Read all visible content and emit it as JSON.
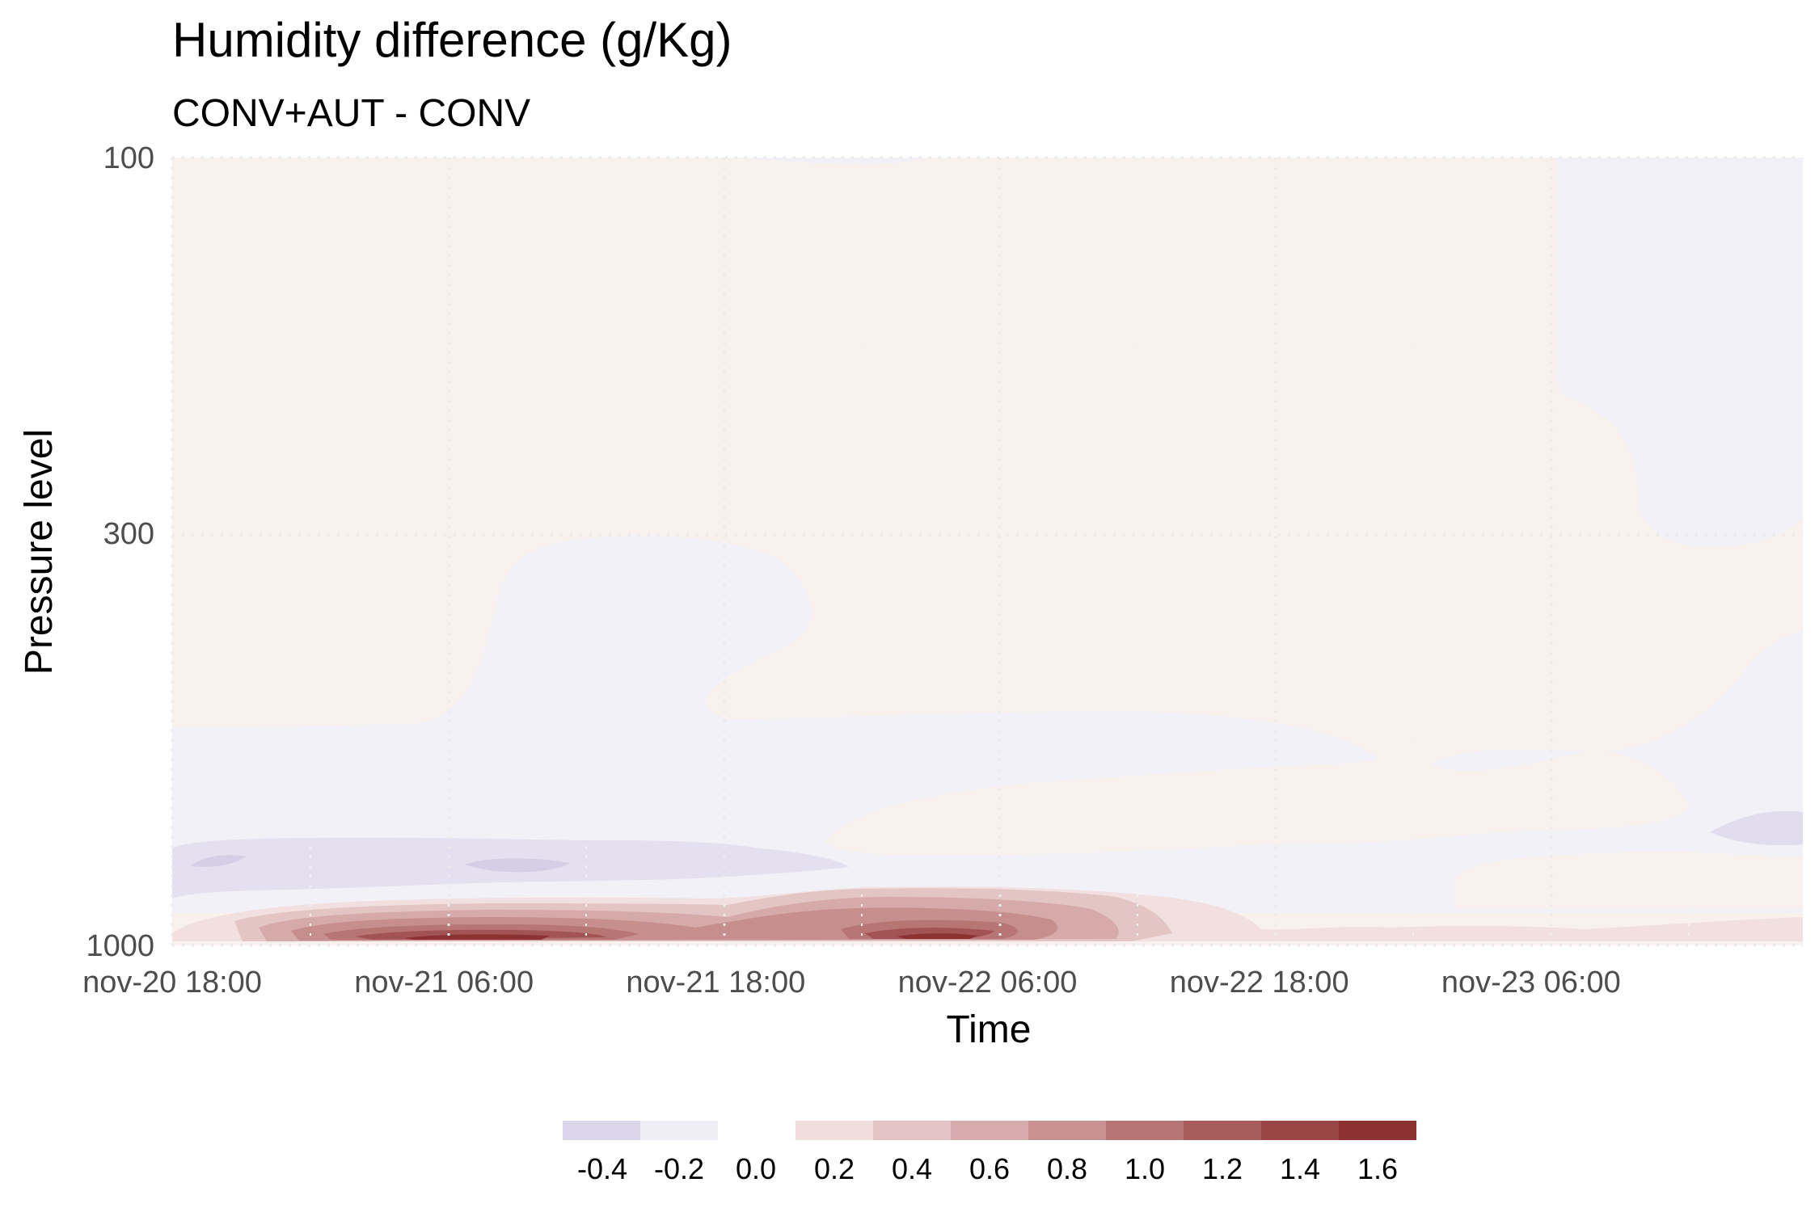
{
  "chart_data": {
    "type": "heatmap",
    "subtype": "filled-contour",
    "title": "Humidity difference (g/Kg)",
    "subtitle": "CONV+AUT - CONV",
    "xlabel": "Time",
    "ylabel": "Pressure level",
    "x_ticks": [
      "nov-20 18:00",
      "nov-21 06:00",
      "nov-21 18:00",
      "nov-22 06:00",
      "nov-22 18:00",
      "nov-23 06:00"
    ],
    "x_range": [
      "nov-20 18:00",
      "nov-23 18:00"
    ],
    "y_ticks": [
      "100",
      "300",
      "1000"
    ],
    "y_range": [
      1000,
      100
    ],
    "y_scale": "log, reversed",
    "grid": true,
    "legend_position": "bottom",
    "legend": {
      "labels": [
        "-0.4",
        "-0.2",
        "0.0",
        "0.2",
        "0.4",
        "0.6",
        "0.8",
        "1.0",
        "1.2",
        "1.4",
        "1.6"
      ],
      "bins": [
        {
          "from": -0.4,
          "to": -0.2,
          "color": "#dcd6ea"
        },
        {
          "from": -0.2,
          "to": 0.0,
          "color": "#efedf5"
        },
        {
          "from": 0.0,
          "to": 0.2,
          "color": "#f0dede"
        },
        {
          "from": 0.2,
          "to": 0.4,
          "color": "#e4c4c4"
        },
        {
          "from": 0.4,
          "to": 0.6,
          "color": "#d8acac"
        },
        {
          "from": 0.6,
          "to": 0.8,
          "color": "#c99191"
        },
        {
          "from": 0.8,
          "to": 1.0,
          "color": "#b87575"
        },
        {
          "from": 1.0,
          "to": 1.2,
          "color": "#a95c5c"
        },
        {
          "from": 1.2,
          "to": 1.4,
          "color": "#9a4646"
        },
        {
          "from": 1.4,
          "to": 1.6,
          "color": "#8c3232"
        }
      ]
    },
    "colors": {
      "near_zero_negative": "#f2f1f7",
      "near_zero_positive": "#f8f1ee",
      "level_neg_02": "#e6e2f0",
      "level_neg_04": "#d8d2e8",
      "level_neg_06": "#cbc3e1"
    },
    "contour_regions": [
      {
        "value": -0.05,
        "description": "weak negative, lower troposphere ~500-800 hPa across most of period"
      },
      {
        "value": 0.05,
        "description": "weak positive, 100-500 hPa"
      },
      {
        "value": -0.3,
        "description": "negative band near 800 hPa, nov-20 18:00 to nov-21 18:00"
      },
      {
        "value": 1.6,
        "description": "maximum near 950-1000 hPa around nov-21 06:00 and nov-22 06:00"
      }
    ]
  }
}
